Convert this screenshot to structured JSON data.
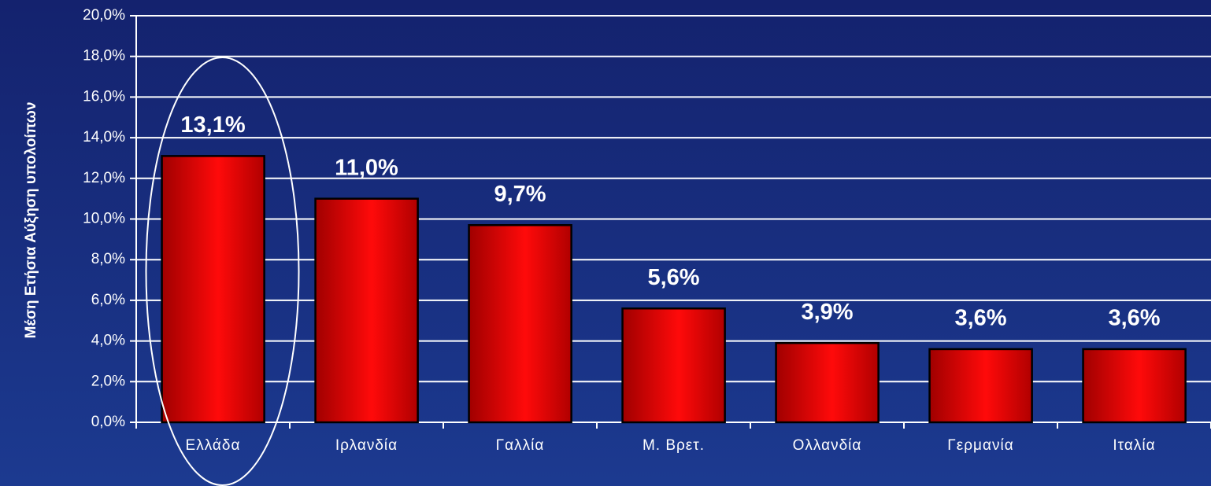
{
  "chart_data": {
    "type": "bar",
    "y_label": "Μέση Ετήσια Αύξηση υπολοίπων",
    "categories": [
      "Ελλάδα",
      "Ιρλανδία",
      "Γαλλία",
      "Μ. Βρετ.",
      "Ολλανδία",
      "Γερμανία",
      "Ιταλία"
    ],
    "values": [
      13.1,
      11.0,
      9.7,
      5.6,
      3.9,
      3.6,
      3.6
    ],
    "value_labels": [
      "13,1%",
      "11,0%",
      "9,7%",
      "5,6%",
      "3,9%",
      "3,6%",
      "3,6%"
    ],
    "color": "#ff0000",
    "ylim": [
      0,
      20
    ],
    "yticks": [
      {
        "value": 0,
        "label": "0,0%"
      },
      {
        "value": 2,
        "label": "2,0%"
      },
      {
        "value": 4,
        "label": "4,0%"
      },
      {
        "value": 6,
        "label": "6,0%"
      },
      {
        "value": 8,
        "label": "8,0%"
      },
      {
        "value": 10,
        "label": "10,0%"
      },
      {
        "value": 12,
        "label": "12,0%"
      },
      {
        "value": 14,
        "label": "14,0%"
      },
      {
        "value": 16,
        "label": "16,0%"
      },
      {
        "value": 18,
        "label": "18,0%"
      },
      {
        "value": 20,
        "label": "20,0%"
      }
    ],
    "grid": true
  }
}
